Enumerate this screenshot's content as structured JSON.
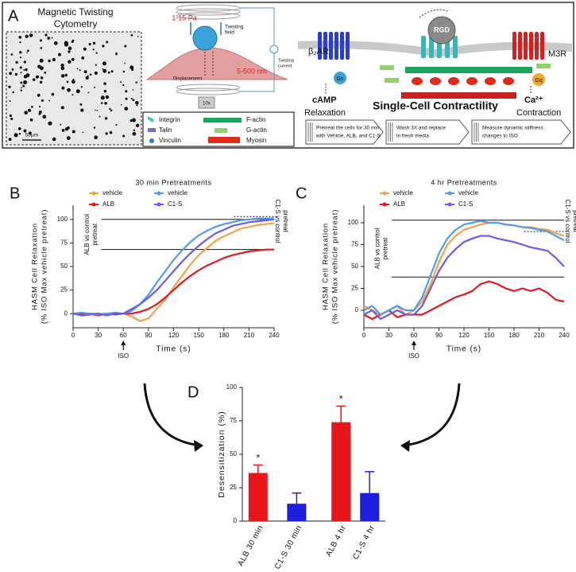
{
  "panel_a": {
    "label": "A",
    "micrograph_title": [
      "Magnetic Twisting",
      "Cytometry"
    ],
    "scale_bar": "50μm",
    "schematic": {
      "stress": "1-15 Pa",
      "field": [
        "Twisting",
        "field"
      ],
      "displacement": "Displacement",
      "range": "5-500 nm",
      "current": [
        "Twisting",
        "current"
      ],
      "objective": "10x"
    },
    "legend": [
      "Integrin",
      "F-actin",
      "Talin",
      "G-actin",
      "Vinculin",
      "Myosin"
    ],
    "receptors": {
      "b2ar": "β₂AR",
      "m3r": "M3R",
      "gs": "Gs",
      "gq": "Gq",
      "rgd": "RGD",
      "camp": "cAMP",
      "ca": "Ca²⁺",
      "relaxation": "Relaxation",
      "contraction": "Contraction",
      "title": "Single-Cell Contractility"
    },
    "steps": [
      [
        "Pretreat the cells for 30 min",
        "with Vehicle, ALB, and C1-S"
      ],
      [
        "Wash 3X and replace",
        "in fresh media"
      ],
      [
        "Measure dynamic stiffness",
        "changes to ISO"
      ]
    ]
  },
  "chart_data": [
    {
      "type": "line",
      "panel": "B",
      "title": "30 min Pretreatments",
      "xlabel": "Time (s)",
      "ylabel": [
        "HASM Cell Relaxation",
        "(% ISO Max vehicle pretreat)"
      ],
      "x": [
        0,
        10,
        20,
        30,
        40,
        50,
        60,
        70,
        80,
        90,
        100,
        110,
        120,
        130,
        140,
        150,
        160,
        170,
        180,
        190,
        200,
        210,
        220,
        230,
        240
      ],
      "xlim": [
        0,
        240
      ],
      "xticks": [
        0,
        30,
        60,
        90,
        120,
        150,
        180,
        210,
        240
      ],
      "ylim": [
        -15,
        115
      ],
      "yticks": [
        0,
        25,
        50,
        75,
        100
      ],
      "series": [
        {
          "name": "vehicle",
          "color": "#f5a04a",
          "values": [
            0,
            0,
            0,
            0,
            0,
            0,
            0,
            -3,
            -8,
            -5,
            5,
            15,
            28,
            40,
            52,
            62,
            70,
            77,
            82,
            86,
            90,
            92,
            94,
            95,
            96
          ]
        },
        {
          "name": "ALB",
          "color": "#e31a1c",
          "values": [
            0,
            -1,
            0,
            -2,
            0,
            -1,
            0,
            0,
            2,
            5,
            10,
            17,
            25,
            33,
            40,
            46,
            51,
            55,
            59,
            62,
            64,
            66,
            67,
            68,
            68
          ]
        },
        {
          "name": "vehicle",
          "color": "#4f9de8",
          "values": [
            0,
            1,
            0,
            -1,
            0,
            1,
            0,
            3,
            10,
            20,
            33,
            45,
            57,
            67,
            76,
            83,
            88,
            92,
            95,
            97,
            99,
            100,
            101,
            101,
            101
          ]
        },
        {
          "name": "C1-S",
          "color": "#6b5ce7",
          "values": [
            0,
            -2,
            -1,
            0,
            -2,
            0,
            0,
            5,
            10,
            17,
            25,
            35,
            45,
            55,
            64,
            72,
            79,
            85,
            89,
            93,
            95,
            97,
            98,
            99,
            100
          ]
        }
      ],
      "ref_lines": [
        100,
        68
      ],
      "ref_dotted": [
        103
      ],
      "annotations": {
        "left": [
          "ALB vs control",
          "pretreat"
        ],
        "right": [
          "C1-S vs control",
          "pretreat"
        ]
      },
      "marker": {
        "text": "ISO",
        "x": 60
      }
    },
    {
      "type": "line",
      "panel": "C",
      "title": "4 hr Pretreatments",
      "xlabel": "Time (s)",
      "ylabel": [
        "HASM Cell Relaxation",
        "(% ISO Max vehicle pretreat)"
      ],
      "x": [
        0,
        10,
        20,
        30,
        40,
        50,
        60,
        70,
        80,
        90,
        100,
        110,
        120,
        130,
        140,
        150,
        160,
        170,
        180,
        190,
        200,
        210,
        220,
        230,
        240
      ],
      "xlim": [
        0,
        240
      ],
      "xticks": [
        0,
        30,
        60,
        90,
        120,
        150,
        180,
        210,
        240
      ],
      "ylim": [
        -20,
        120
      ],
      "yticks": [
        0,
        25,
        50,
        75,
        100
      ],
      "series": [
        {
          "name": "vehicle",
          "color": "#f5a04a",
          "values": [
            5,
            0,
            -5,
            0,
            5,
            -5,
            0,
            10,
            30,
            55,
            75,
            85,
            92,
            95,
            98,
            100,
            100,
            98,
            97,
            95,
            95,
            93,
            92,
            88,
            85
          ]
        },
        {
          "name": "ALB",
          "color": "#e31a1c",
          "values": [
            -5,
            -10,
            -5,
            0,
            -8,
            -5,
            -5,
            -5,
            0,
            5,
            10,
            15,
            18,
            22,
            30,
            33,
            30,
            25,
            22,
            25,
            22,
            25,
            20,
            12,
            10
          ]
        },
        {
          "name": "vehicle",
          "color": "#4f9de8",
          "values": [
            0,
            5,
            -5,
            0,
            5,
            0,
            0,
            15,
            40,
            65,
            82,
            92,
            98,
            100,
            102,
            100,
            100,
            98,
            97,
            95,
            94,
            92,
            90,
            85,
            80
          ]
        },
        {
          "name": "C1-S",
          "color": "#6b5ce7",
          "values": [
            -5,
            0,
            -10,
            -5,
            0,
            -5,
            -5,
            5,
            25,
            45,
            60,
            70,
            78,
            82,
            85,
            85,
            82,
            80,
            78,
            75,
            72,
            70,
            68,
            60,
            50
          ]
        }
      ],
      "ref_lines": [
        103,
        38
      ],
      "ref_dotted": [
        90
      ],
      "annotations": {
        "left": [
          "ALB vs control",
          "pretreat"
        ],
        "right": [
          "C1-S vs control",
          "pretreat"
        ]
      },
      "marker": {
        "text": "ISO",
        "x": 60
      }
    },
    {
      "type": "bar",
      "panel": "D",
      "ylabel": "Desensitization (%)",
      "categories": [
        "ALB 30 min",
        "C1-S 30 min",
        "ALB 4 hr",
        "C1-S 4 hr"
      ],
      "values": [
        36,
        13,
        74,
        21
      ],
      "errors": [
        6,
        8,
        12,
        16
      ],
      "colors": [
        "#e8161b",
        "#1f1fe0",
        "#e8161b",
        "#1f1fe0"
      ],
      "significance": [
        "*",
        null,
        "*",
        null
      ],
      "ylim": [
        0,
        100
      ],
      "yticks": [
        0,
        25,
        50,
        75,
        100
      ]
    }
  ]
}
